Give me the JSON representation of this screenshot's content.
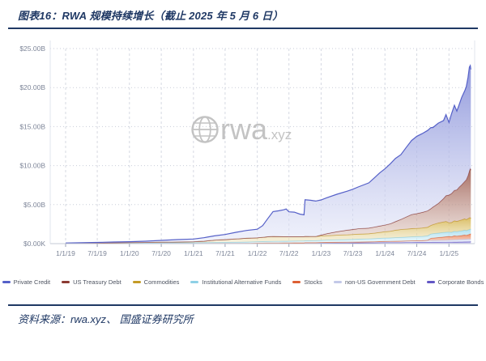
{
  "page": {
    "title": "图表16：RWA 规模持续增长（截止 2025 年 5 月 6 日）",
    "source": "资料来源：rwa.xyz、 国盛证券研究所",
    "accent_color": "#1f3864"
  },
  "chart": {
    "watermark": {
      "icon": "globe-icon",
      "text": "rwa",
      "suffix": ".xyz",
      "color": "#b5b5b5"
    },
    "y_tick_labels": [
      "$25.00B",
      "$20.00B",
      "$15.00B",
      "$10.00B",
      "$5.00B",
      "$0.00K"
    ],
    "y_tick_values": [
      25,
      20,
      15,
      10,
      5,
      0
    ],
    "x_tick_labels": [
      "1/1/19",
      "7/1/19",
      "1/1/20",
      "7/1/20",
      "1/1/21",
      "7/1/21",
      "1/1/22",
      "7/1/22",
      "1/1/23",
      "7/1/23",
      "1/1/24",
      "7/1/24",
      "1/1/25"
    ],
    "x_tick_dates": [
      "2019-01-01",
      "2019-07-01",
      "2020-01-01",
      "2020-07-01",
      "2021-01-01",
      "2021-07-01",
      "2022-01-01",
      "2022-07-01",
      "2023-01-01",
      "2023-07-01",
      "2024-01-01",
      "2024-07-01",
      "2025-01-01"
    ]
  },
  "chart_data": {
    "type": "area",
    "stacked": true,
    "unit": "USD billions",
    "title": "",
    "xlabel": "",
    "ylabel": "",
    "ylim": [
      0,
      25
    ],
    "grid": true,
    "legend_position": "bottom",
    "x_range": [
      "2018-10-05",
      "2025-05-28"
    ],
    "x": [
      "2019-01-01",
      "2019-04-01",
      "2019-07-01",
      "2019-10-01",
      "2020-01-01",
      "2020-04-01",
      "2020-07-01",
      "2020-10-01",
      "2021-01-01",
      "2021-03-01",
      "2021-05-01",
      "2021-07-01",
      "2021-09-01",
      "2021-11-01",
      "2022-01-01",
      "2022-02-01",
      "2022-03-01",
      "2022-04-01",
      "2022-05-01",
      "2022-06-01",
      "2022-06-15",
      "2022-07-01",
      "2022-08-01",
      "2022-09-01",
      "2022-09-25",
      "2022-10-01",
      "2022-11-01",
      "2022-12-01",
      "2023-01-01",
      "2023-02-01",
      "2023-04-01",
      "2023-06-01",
      "2023-07-01",
      "2023-08-01",
      "2023-10-01",
      "2023-11-01",
      "2023-12-01",
      "2024-01-01",
      "2024-02-01",
      "2024-03-01",
      "2024-04-01",
      "2024-05-01",
      "2024-06-01",
      "2024-07-01",
      "2024-08-01",
      "2024-09-01",
      "2024-09-20",
      "2024-10-01",
      "2024-11-01",
      "2024-12-01",
      "2024-12-15",
      "2025-01-01",
      "2025-01-15",
      "2025-02-01",
      "2025-02-15",
      "2025-03-01",
      "2025-03-15",
      "2025-04-01",
      "2025-04-10",
      "2025-04-20",
      "2025-04-28",
      "2025-05-03",
      "2025-05-06"
    ],
    "series": [
      {
        "name": "Private Credit",
        "color": "#5560c8",
        "fill_top": "#848dd8",
        "fill_bottom": "#e4e7f8",
        "values": [
          0.03,
          0.05,
          0.07,
          0.1,
          0.12,
          0.16,
          0.22,
          0.3,
          0.35,
          0.45,
          0.55,
          0.65,
          0.85,
          1.0,
          1.1,
          1.5,
          2.3,
          3.2,
          3.3,
          3.45,
          3.55,
          3.2,
          3.15,
          2.9,
          2.8,
          4.7,
          4.65,
          4.55,
          4.5,
          4.6,
          4.8,
          5.0,
          5.15,
          5.35,
          5.8,
          6.3,
          6.8,
          7.2,
          7.7,
          8.1,
          8.3,
          8.9,
          9.5,
          9.9,
          10.1,
          10.3,
          10.4,
          10.2,
          10.3,
          10.0,
          10.4,
          9.3,
          10.2,
          10.9,
          10.1,
          10.6,
          11.2,
          11.6,
          11.9,
          12.6,
          13.3,
          13.2,
          12.9
        ]
      },
      {
        "name": "US Treasury Debt",
        "color": "#8b3a32",
        "fill_top": "#9c5c50",
        "fill_bottom": "#e5d2cc",
        "values": [
          0,
          0,
          0,
          0,
          0,
          0,
          0,
          0,
          0,
          0,
          0,
          0,
          0,
          0,
          0,
          0,
          0,
          0,
          0,
          0,
          0,
          0,
          0,
          0,
          0,
          0,
          0,
          0,
          0.12,
          0.25,
          0.45,
          0.6,
          0.65,
          0.7,
          0.72,
          0.78,
          0.82,
          0.86,
          0.95,
          1.1,
          1.3,
          1.55,
          1.8,
          1.9,
          2.0,
          2.1,
          2.15,
          2.25,
          2.5,
          3.0,
          3.3,
          3.55,
          3.7,
          3.9,
          4.05,
          4.3,
          4.5,
          4.8,
          5.1,
          5.5,
          6.0,
          6.3,
          6.2
        ]
      },
      {
        "name": "Commodities",
        "color": "#c49b26",
        "fill_top": "#d7b855",
        "fill_bottom": "#f1e9ca",
        "values": [
          0.01,
          0.02,
          0.03,
          0.04,
          0.05,
          0.06,
          0.08,
          0.1,
          0.12,
          0.18,
          0.3,
          0.35,
          0.42,
          0.48,
          0.5,
          0.55,
          0.6,
          0.62,
          0.6,
          0.58,
          0.58,
          0.56,
          0.56,
          0.55,
          0.55,
          0.55,
          0.54,
          0.53,
          0.55,
          0.56,
          0.58,
          0.6,
          0.62,
          0.64,
          0.66,
          0.7,
          0.75,
          0.8,
          0.85,
          0.95,
          1.0,
          1.02,
          1.05,
          1.05,
          1.08,
          1.1,
          1.1,
          1.15,
          1.3,
          1.35,
          1.38,
          1.2,
          1.25,
          1.35,
          1.3,
          1.35,
          1.4,
          1.45,
          1.4,
          1.45,
          1.5,
          1.45,
          1.4
        ]
      },
      {
        "name": "Institutional Alternative Funds",
        "color": "#8ed0e6",
        "fill_top": "#a5dcee",
        "fill_bottom": "#ddf2f9",
        "values": [
          0.03,
          0.04,
          0.05,
          0.06,
          0.07,
          0.08,
          0.09,
          0.1,
          0.1,
          0.11,
          0.12,
          0.14,
          0.15,
          0.17,
          0.18,
          0.19,
          0.2,
          0.21,
          0.22,
          0.22,
          0.22,
          0.23,
          0.23,
          0.24,
          0.24,
          0.25,
          0.25,
          0.26,
          0.28,
          0.3,
          0.32,
          0.34,
          0.35,
          0.36,
          0.38,
          0.4,
          0.42,
          0.44,
          0.45,
          0.46,
          0.48,
          0.5,
          0.52,
          0.53,
          0.54,
          0.55,
          0.55,
          0.56,
          0.57,
          0.58,
          0.58,
          0.55,
          0.56,
          0.57,
          0.58,
          0.58,
          0.59,
          0.6,
          0.6,
          0.61,
          0.62,
          0.62,
          0.6
        ]
      },
      {
        "name": "Stocks",
        "color": "#dd5f33",
        "fill_top": "#e87c50",
        "fill_bottom": "#f6d0bd",
        "values": [
          0,
          0,
          0,
          0,
          0,
          0,
          0,
          0,
          0,
          0,
          0,
          0,
          0,
          0,
          0,
          0,
          0,
          0,
          0,
          0,
          0,
          0,
          0,
          0,
          0,
          0,
          0,
          0,
          0,
          0,
          0,
          0,
          0,
          0,
          0,
          0,
          0,
          0,
          0,
          0,
          0,
          0,
          0,
          0,
          0,
          0.05,
          0.28,
          0.3,
          0.35,
          0.4,
          0.42,
          0.45,
          0.4,
          0.5,
          0.44,
          0.48,
          0.5,
          0.55,
          0.5,
          0.55,
          0.6,
          0.65,
          0.62
        ]
      },
      {
        "name": "non-US Government Debt",
        "color": "#c3c9e8",
        "fill_top": "#d2d7f0",
        "fill_bottom": "#eceef9",
        "values": [
          0,
          0,
          0,
          0,
          0,
          0,
          0,
          0,
          0,
          0,
          0,
          0,
          0,
          0,
          0.02,
          0.02,
          0.03,
          0.03,
          0.03,
          0.04,
          0.04,
          0.04,
          0.05,
          0.05,
          0.05,
          0.06,
          0.06,
          0.06,
          0.07,
          0.08,
          0.09,
          0.1,
          0.1,
          0.11,
          0.12,
          0.13,
          0.14,
          0.15,
          0.16,
          0.17,
          0.18,
          0.19,
          0.2,
          0.21,
          0.22,
          0.23,
          0.23,
          0.24,
          0.25,
          0.26,
          0.27,
          0.28,
          0.29,
          0.3,
          0.31,
          0.32,
          0.33,
          0.34,
          0.34,
          0.35,
          0.35,
          0.35,
          0.35
        ]
      },
      {
        "name": "Corporate Bonds",
        "color": "#6257c5",
        "fill_top": "#7d73d2",
        "fill_bottom": "#c5c0ec",
        "values": [
          0.01,
          0.01,
          0.01,
          0.01,
          0.01,
          0.01,
          0.02,
          0.02,
          0.02,
          0.02,
          0.03,
          0.03,
          0.03,
          0.04,
          0.05,
          0.05,
          0.05,
          0.05,
          0.05,
          0.05,
          0.05,
          0.05,
          0.05,
          0.05,
          0.05,
          0.06,
          0.06,
          0.06,
          0.08,
          0.08,
          0.09,
          0.09,
          0.1,
          0.1,
          0.11,
          0.11,
          0.12,
          0.13,
          0.13,
          0.14,
          0.14,
          0.15,
          0.15,
          0.16,
          0.16,
          0.17,
          0.17,
          0.18,
          0.18,
          0.19,
          0.19,
          0.2,
          0.2,
          0.21,
          0.21,
          0.22,
          0.22,
          0.23,
          0.23,
          0.24,
          0.24,
          0.25,
          0.25
        ]
      }
    ]
  }
}
